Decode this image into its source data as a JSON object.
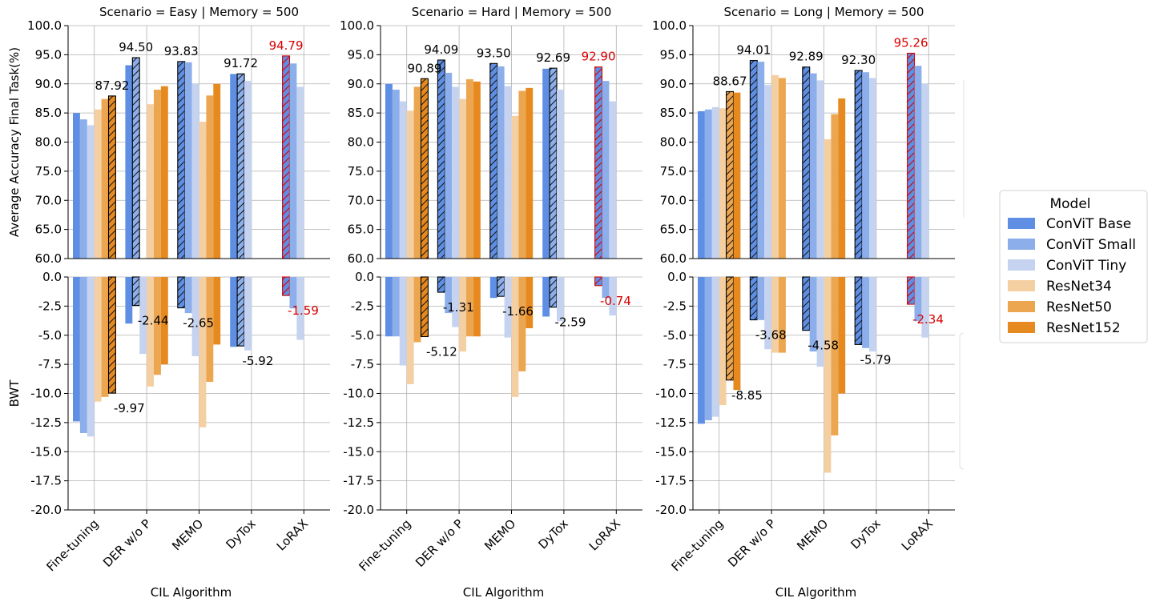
{
  "chart_data": {
    "type": "bar",
    "algorithms": [
      "Fine-tuning",
      "DER w/o P",
      "MEMO",
      "DyTox",
      "LoRAX"
    ],
    "models": [
      "ConViT Base",
      "ConViT Small",
      "ConViT Tiny",
      "ResNet34",
      "ResNet50",
      "ResNet152"
    ],
    "model_colors": [
      "#5f8fe4",
      "#8caeea",
      "#c5d3f0",
      "#f4cfa2",
      "#eca650",
      "#e6891f"
    ],
    "highlight_color": "#d60000",
    "top_ylabel": "Average Accuracy Final Task(%)",
    "bottom_ylabel": "BWT",
    "xlabel": "CIL Algorithm",
    "top_ylim": [
      60,
      100
    ],
    "top_ticks": [
      "60.0",
      "65.0",
      "70.0",
      "75.0",
      "80.0",
      "85.0",
      "90.0",
      "95.0",
      "100.0"
    ],
    "bottom_ylim": [
      -20,
      0
    ],
    "bottom_ticks": [
      "-20.0",
      "-17.5",
      "-15.0",
      "-12.5",
      "-10.0",
      "-7.5",
      "-5.0",
      "-2.5",
      "0.0"
    ],
    "legend": {
      "title": "Model",
      "placement": "right"
    },
    "panels": [
      {
        "title": "Scenario = Easy | Memory = 500",
        "accuracy": [
          [
            85.0,
            83.9,
            82.9,
            85.6,
            87.4,
            87.92
          ],
          [
            93.2,
            94.5,
            null,
            86.5,
            89.0,
            89.6
          ],
          [
            93.83,
            93.7,
            90.0,
            83.5,
            88.0,
            90.0
          ],
          [
            91.7,
            91.72,
            90.5,
            null,
            null,
            null
          ],
          [
            94.79,
            93.5,
            89.5,
            null,
            null,
            null
          ]
        ],
        "bwt": [
          [
            -12.4,
            -13.4,
            -13.7,
            -10.7,
            -10.3,
            -9.97
          ],
          [
            -4.0,
            -2.44,
            -6.6,
            -9.4,
            -8.4,
            -7.5
          ],
          [
            -2.65,
            -3.1,
            -6.8,
            -12.9,
            -9.0,
            -5.8
          ],
          [
            -6.0,
            -5.92,
            -6.3,
            null,
            null,
            null
          ],
          [
            -1.59,
            -2.7,
            -5.4,
            null,
            null,
            null
          ]
        ],
        "best_acc": [
          [
            0,
            5
          ],
          [
            1,
            1
          ],
          [
            2,
            0
          ],
          [
            3,
            1
          ],
          [
            4,
            0
          ]
        ],
        "best_bwt": [
          [
            0,
            5
          ],
          [
            1,
            1
          ],
          [
            2,
            0
          ],
          [
            3,
            1
          ],
          [
            4,
            0
          ]
        ],
        "acc_labels": [
          "87.92",
          "94.50",
          "93.83",
          "91.72",
          "94.79"
        ],
        "bwt_labels": [
          "-9.97",
          "-2.44",
          "-2.65",
          "-5.92",
          "-1.59"
        ]
      },
      {
        "title": "Scenario = Hard | Memory = 500",
        "accuracy": [
          [
            90.0,
            89.0,
            87.0,
            85.4,
            89.5,
            90.89
          ],
          [
            94.09,
            91.9,
            89.5,
            87.4,
            90.8,
            90.4
          ],
          [
            93.5,
            93.0,
            89.6,
            84.5,
            88.8,
            89.3
          ],
          [
            92.6,
            92.69,
            89.0,
            null,
            null,
            null
          ],
          [
            92.9,
            90.5,
            87.0,
            null,
            null,
            null
          ]
        ],
        "bwt": [
          [
            -5.1,
            -5.1,
            -7.6,
            -9.2,
            -5.6,
            -5.12
          ],
          [
            -1.31,
            -3.1,
            -4.3,
            -6.4,
            -5.1,
            -5.1
          ],
          [
            -1.8,
            -1.66,
            -5.2,
            -10.3,
            -8.1,
            -4.4
          ],
          [
            -3.4,
            -2.59,
            -3.8,
            null,
            null,
            null
          ],
          [
            -0.74,
            -1.8,
            -3.3,
            null,
            null,
            null
          ]
        ],
        "best_acc": [
          [
            0,
            5
          ],
          [
            1,
            0
          ],
          [
            2,
            0
          ],
          [
            3,
            1
          ],
          [
            4,
            0
          ]
        ],
        "best_bwt": [
          [
            0,
            5
          ],
          [
            1,
            0
          ],
          [
            2,
            1
          ],
          [
            3,
            1
          ],
          [
            4,
            0
          ]
        ],
        "acc_labels": [
          "90.89",
          "94.09",
          "93.50",
          "92.69",
          "92.90"
        ],
        "bwt_labels": [
          "-5.12",
          "-1.31",
          "-1.66",
          "-2.59",
          "-0.74"
        ]
      },
      {
        "title": "Scenario = Long | Memory = 500",
        "accuracy": [
          [
            85.3,
            85.6,
            86.0,
            85.8,
            88.67,
            88.5
          ],
          [
            94.01,
            93.8,
            89.8,
            91.5,
            91.0,
            null
          ],
          [
            92.89,
            91.8,
            90.6,
            80.5,
            84.8,
            87.5
          ],
          [
            92.3,
            92.0,
            91.0,
            null,
            null,
            null
          ],
          [
            95.26,
            93.1,
            90.0,
            null,
            null,
            null
          ]
        ],
        "bwt": [
          [
            -12.6,
            -12.3,
            -12.0,
            -11.0,
            -8.85,
            -9.7
          ],
          [
            -3.68,
            -3.7,
            -6.2,
            -6.5,
            -6.5,
            null
          ],
          [
            -4.58,
            -6.4,
            -7.7,
            -16.8,
            -13.6,
            -10.0
          ],
          [
            -5.8,
            -6.1,
            -6.4,
            null,
            null,
            null
          ],
          [
            -2.34,
            -3.8,
            -5.2,
            null,
            null,
            null
          ]
        ],
        "best_acc": [
          [
            0,
            4
          ],
          [
            1,
            0
          ],
          [
            2,
            0
          ],
          [
            3,
            0
          ],
          [
            4,
            0
          ]
        ],
        "best_bwt": [
          [
            0,
            4
          ],
          [
            1,
            0
          ],
          [
            2,
            0
          ],
          [
            3,
            0
          ],
          [
            4,
            0
          ]
        ],
        "acc_labels": [
          "88.67",
          "94.01",
          "92.89",
          "92.30",
          "95.26"
        ],
        "bwt_labels": [
          "-8.85",
          "-3.68",
          "-4.58",
          "-5.79",
          "-2.34"
        ]
      }
    ],
    "red_algorithm": "LoRAX"
  }
}
